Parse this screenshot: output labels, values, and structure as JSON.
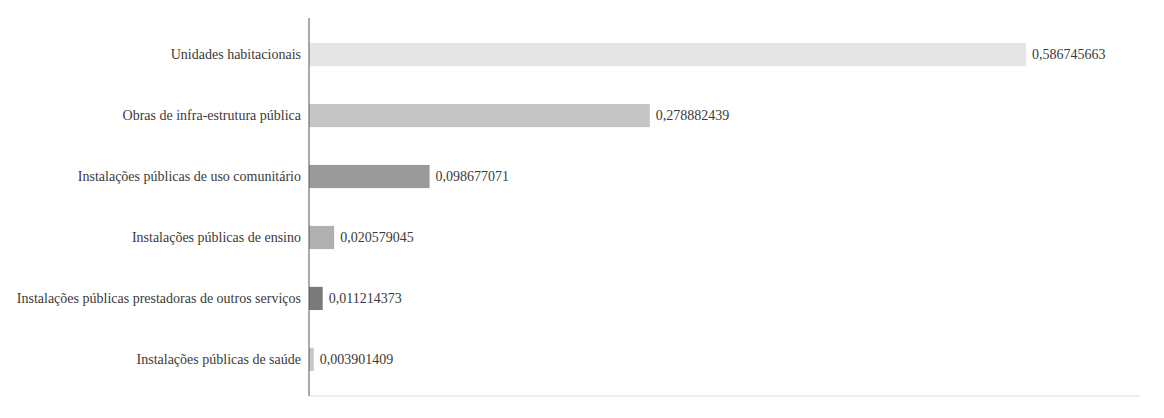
{
  "chart_data": {
    "type": "bar",
    "orientation": "horizontal",
    "categories": [
      "Instalações públicas de saúde",
      "Instalações públicas prestadoras de outros serviços",
      "Instalações públicas de ensino",
      "Instalações públicas de uso comunitário",
      "Obras de infra-estrutura pública",
      "Unidades habitacionais"
    ],
    "values": [
      0.003901409,
      0.011214373,
      0.020579045,
      0.098677071,
      0.278882439,
      0.586745663
    ],
    "value_labels": [
      "0,003901409",
      "0,011214373",
      "0,020579045",
      "0,098677071",
      "0,278882439",
      "0,586745663"
    ],
    "colors": [
      "#c8c8c8",
      "#7a7a7a",
      "#b0b0b0",
      "#9a9a9a",
      "#c5c5c5",
      "#e5e5e5"
    ],
    "xlim": [
      0,
      0.68
    ],
    "data_labels": true,
    "tick_labels": "y",
    "grid": false
  }
}
